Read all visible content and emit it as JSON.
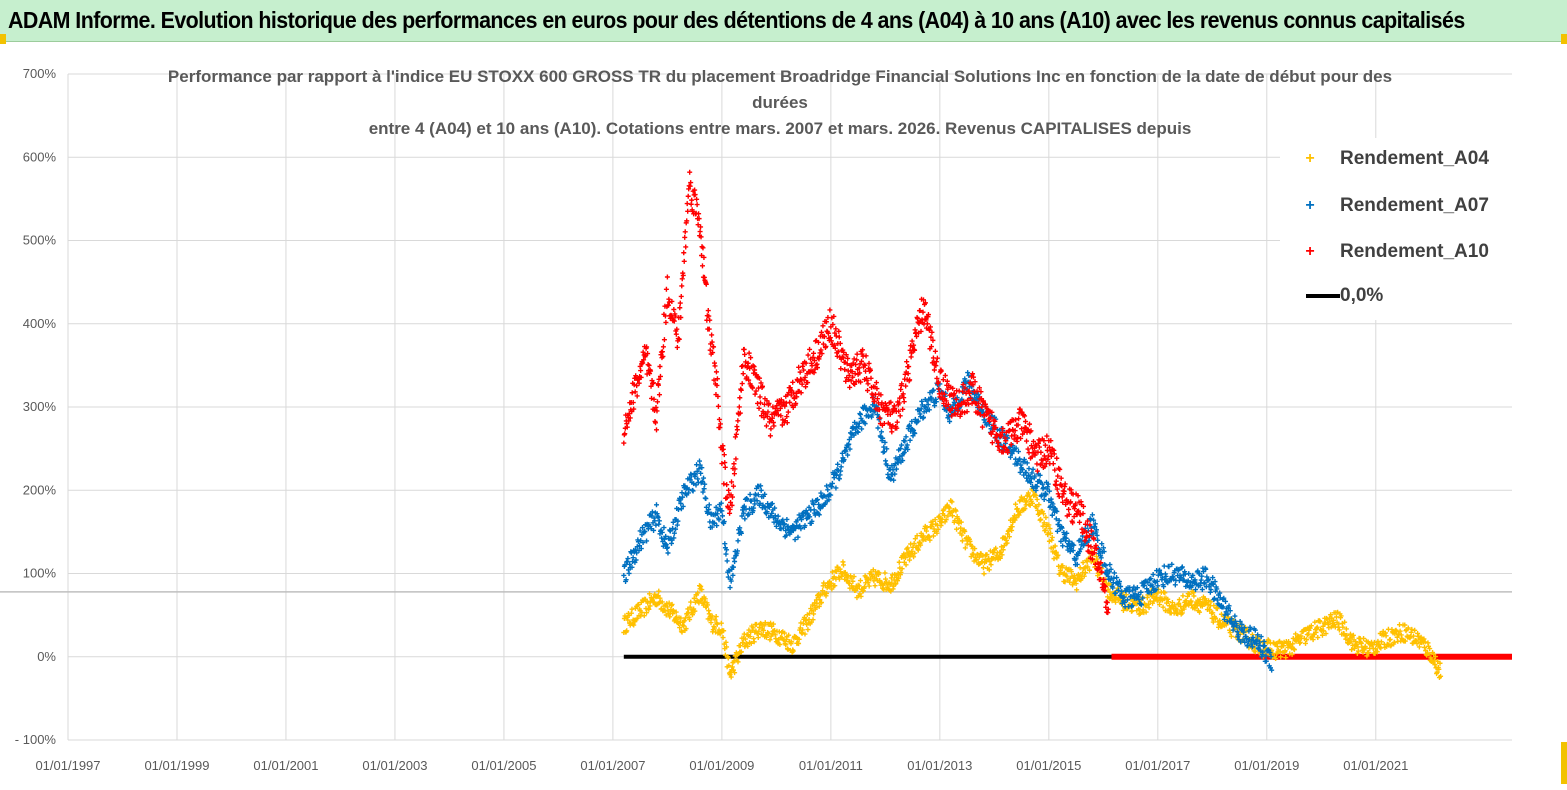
{
  "banner": {
    "title": "ADAM Informe. Evolution historique des performances en euros pour des détentions de 4 ans (A04) à 10 ans (A10) avec les revenus connus capitalisés"
  },
  "colors": {
    "A04": "#ffc000",
    "A07": "#0070c0",
    "A10": "#ff0000",
    "zero": "#000000",
    "grid": "#d9d9d9",
    "banner": "#c6efce"
  },
  "chart_data": {
    "type": "scatter",
    "title_lines": [
      "Performance par rapport à l'indice EU STOXX 600 GROSS TR  du placement Broadridge Financial Solutions Inc en fonction de la date de début pour des durées",
      "entre 4 (A04) et 10 ans (A10). Cotations entre mars. 2007 et mars. 2026. Revenus CAPITALISES depuis"
    ],
    "xlabel": "",
    "ylabel": "",
    "xlim": [
      1997.0,
      2023.5
    ],
    "ylim": [
      -100,
      700
    ],
    "y_ticks": [
      -100,
      0,
      100,
      200,
      300,
      400,
      500,
      600,
      700
    ],
    "y_tick_labels": [
      "- 100%",
      "0%",
      "100%",
      "200%",
      "300%",
      "400%",
      "500%",
      "600%",
      "700%"
    ],
    "x_ticks": [
      1997,
      1999,
      2001,
      2003,
      2005,
      2007,
      2009,
      2011,
      2013,
      2015,
      2017,
      2019,
      2021
    ],
    "x_tick_labels": [
      "01/01/1997",
      "01/01/1999",
      "01/01/2001",
      "01/01/2003",
      "01/01/2005",
      "01/01/2007",
      "01/01/2009",
      "01/01/2011",
      "01/01/2013",
      "01/01/2015",
      "01/01/2017",
      "01/01/2019",
      "01/01/2021"
    ],
    "reference_line_y": 78,
    "legend": [
      "Rendement_A04",
      "Rendement_A07",
      "Rendement_A10",
      "0,0%"
    ],
    "legend_position": "top-right",
    "series": [
      {
        "name": "Rendement_A04",
        "x": [
          2007.2,
          2007.5,
          2007.8,
          2008.0,
          2008.3,
          2008.6,
          2008.8,
          2009.0,
          2009.15,
          2009.4,
          2009.7,
          2010.0,
          2010.3,
          2010.6,
          2010.9,
          2011.2,
          2011.5,
          2011.8,
          2012.1,
          2012.4,
          2012.7,
          2013.0,
          2013.2,
          2013.5,
          2013.8,
          2014.1,
          2014.4,
          2014.7,
          2015.0,
          2015.2,
          2015.5,
          2015.8,
          2016.1,
          2016.4,
          2016.7,
          2017.0,
          2017.3,
          2017.6,
          2017.9,
          2018.2,
          2018.5,
          2018.8,
          2019.1,
          2019.4,
          2019.7,
          2020.0,
          2020.3,
          2020.6,
          2020.9,
          2021.2,
          2021.5,
          2021.8,
          2022.0,
          2022.2
        ],
        "values": [
          38,
          55,
          72,
          58,
          38,
          78,
          42,
          35,
          -22,
          18,
          35,
          28,
          15,
          45,
          82,
          105,
          80,
          95,
          88,
          120,
          145,
          160,
          180,
          135,
          110,
          125,
          175,
          195,
          150,
          105,
          90,
          120,
          80,
          65,
          60,
          75,
          55,
          70,
          60,
          40,
          30,
          15,
          8,
          10,
          25,
          35,
          45,
          15,
          10,
          22,
          30,
          20,
          5,
          -20
        ]
      },
      {
        "name": "Rendement_A07",
        "x": [
          2007.2,
          2007.5,
          2007.8,
          2008.0,
          2008.3,
          2008.6,
          2008.8,
          2009.0,
          2009.15,
          2009.4,
          2009.7,
          2010.0,
          2010.3,
          2010.6,
          2010.9,
          2011.2,
          2011.5,
          2011.8,
          2012.1,
          2012.4,
          2012.7,
          2013.0,
          2013.2,
          2013.5,
          2013.8,
          2014.1,
          2014.4,
          2014.7,
          2015.0,
          2015.2,
          2015.5,
          2015.8,
          2016.1,
          2016.4,
          2016.7,
          2017.0,
          2017.3,
          2017.6,
          2017.9,
          2018.2,
          2018.5,
          2018.8,
          2019.1
        ],
        "values": [
          95,
          140,
          170,
          130,
          195,
          225,
          160,
          180,
          85,
          175,
          195,
          165,
          150,
          170,
          190,
          230,
          280,
          305,
          215,
          260,
          300,
          320,
          290,
          330,
          295,
          265,
          240,
          215,
          195,
          150,
          120,
          160,
          100,
          70,
          75,
          95,
          100,
          90,
          95,
          60,
          30,
          20,
          -5
        ]
      },
      {
        "name": "Rendement_A10",
        "x": [
          2007.2,
          2007.4,
          2007.6,
          2007.8,
          2008.0,
          2008.2,
          2008.4,
          2008.6,
          2008.75,
          2008.9,
          2009.0,
          2009.15,
          2009.4,
          2009.6,
          2009.9,
          2010.2,
          2010.4,
          2010.7,
          2011.0,
          2011.3,
          2011.6,
          2011.9,
          2012.2,
          2012.4,
          2012.7,
          2013.0,
          2013.3,
          2013.6,
          2013.9,
          2014.2,
          2014.5,
          2014.8,
          2015.0,
          2015.3,
          2015.6,
          2015.8,
          2016.0,
          2016.1
        ],
        "values": [
          270,
          320,
          360,
          290,
          440,
          380,
          570,
          520,
          400,
          330,
          245,
          170,
          360,
          330,
          280,
          300,
          330,
          360,
          400,
          340,
          350,
          300,
          280,
          340,
          420,
          330,
          300,
          320,
          280,
          260,
          280,
          240,
          250,
          190,
          170,
          130,
          90,
          40
        ]
      },
      {
        "name": "0,0%",
        "x": [
          2007.2,
          2023.5
        ],
        "values": [
          0,
          0
        ]
      }
    ]
  }
}
